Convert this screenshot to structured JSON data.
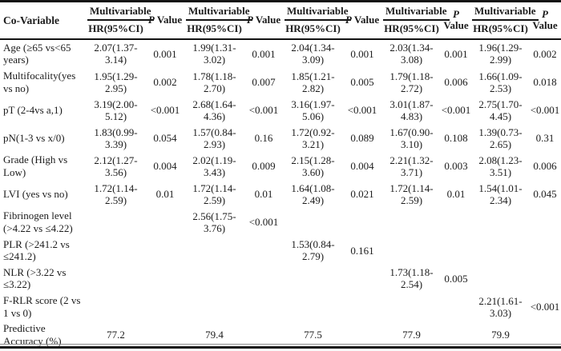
{
  "table": {
    "col_header": "Co-Variable",
    "group_label": "Multivariable",
    "sub_label": "HR(95%CI)",
    "p_label": {
      "p": "P",
      "value": "Value"
    },
    "rows": [
      {
        "label": "Age (≥65 vs<65 years)",
        "cells": [
          "2.07(1.37-3.14)",
          "0.001",
          "1.99(1.31-3.02)",
          "0.001",
          "2.04(1.34-3.09)",
          "0.001",
          "2.03(1.34-3.08)",
          "0.001",
          "1.96(1.29-2.99)",
          "0.002"
        ]
      },
      {
        "label": "Multifocality(yes vs no)",
        "cells": [
          "1.95(1.29-2.95)",
          "0.002",
          "1.78(1.18-2.70)",
          "0.007",
          "1.85(1.21-2.82)",
          "0.005",
          "1.79(1.18-2.72)",
          "0.006",
          "1.66(1.09-2.53)",
          "0.018"
        ]
      },
      {
        "label": "pT (2-4vs a,1)",
        "cells": [
          "3.19(2.00-5.12)",
          "<0.001",
          "2.68(1.64-4.36)",
          "<0.001",
          "3.16(1.97-5.06)",
          "<0.001",
          "3.01(1.87-4.83)",
          "<0.001",
          "2.75(1.70-4.45)",
          "<0.001"
        ]
      },
      {
        "label": "pN(1-3 vs x/0)",
        "cells": [
          "1.83(0.99-3.39)",
          "0.054",
          "1.57(0.84-2.93)",
          "0.16",
          "1.72(0.92-3.21)",
          "0.089",
          "1.67(0.90-3.10)",
          "0.108",
          "1.39(0.73-2.65)",
          "0.31"
        ]
      },
      {
        "label": "Grade (High vs Low)",
        "cells": [
          "2.12(1.27-3.56)",
          "0.004",
          "2.02(1.19-3.43)",
          "0.009",
          "2.15(1.28-3.60)",
          "0.004",
          "2.21(1.32-3.71)",
          "0.003",
          "2.08(1.23-3.51)",
          "0.006"
        ]
      },
      {
        "label": "LVI (yes vs no)",
        "cells": [
          "1.72(1.14-2.59)",
          "0.01",
          "1.72(1.14-2.59)",
          "0.01",
          "1.64(1.08-2.49)",
          "0.021",
          "1.72(1.14-2.59)",
          "0.01",
          "1.54(1.01-2.34)",
          "0.045"
        ]
      },
      {
        "label": "Fibrinogen level (>4.22 vs ≤4.22)",
        "cells": [
          "",
          "",
          "2.56(1.75-3.76)",
          "<0.001",
          "",
          "",
          "",
          "",
          "",
          ""
        ]
      },
      {
        "label": "PLR (>241.2 vs ≤241.2)",
        "cells": [
          "",
          "",
          "",
          "",
          "1.53(0.84-2.79)",
          "0.161",
          "",
          "",
          "",
          ""
        ]
      },
      {
        "label": "NLR (>3.22 vs ≤3.22)",
        "cells": [
          "",
          "",
          "",
          "",
          "",
          "",
          "1.73(1.18-2.54)",
          "0.005",
          "",
          ""
        ]
      },
      {
        "label": "F-RLR score (2 vs 1 vs 0)",
        "cells": [
          "",
          "",
          "",
          "",
          "",
          "",
          "",
          "",
          "2.21(1.61-3.03)",
          "<0.001"
        ]
      },
      {
        "label": "Predictive Accuracy (%)",
        "cells": [
          "77.2",
          "",
          "79.4",
          "",
          "77.5",
          "",
          "77.9",
          "",
          "79.9",
          ""
        ]
      }
    ]
  }
}
